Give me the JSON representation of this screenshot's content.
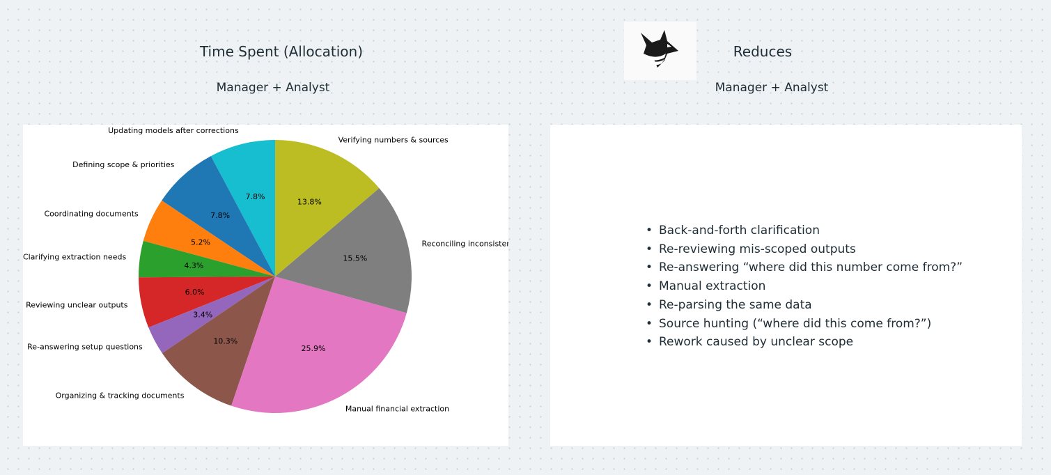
{
  "left_panel": {
    "title": "Time Spent (Allocation)",
    "subtitle": "Manager + Analyst"
  },
  "right_panel": {
    "logo_icon": "wolf-logo-icon",
    "title": "Reduces",
    "subtitle": "Manager + Analyst",
    "items": [
      "Back-and-forth clarification",
      "Re-reviewing mis-scoped outputs",
      "Re-answering “where did this number come from?”",
      "Manual extraction",
      "Re-parsing the same data",
      "Source hunting (“where did this come from?”)",
      "Rework caused by unclear scope"
    ]
  },
  "chart_data": {
    "type": "pie",
    "start_angle_deg": 90,
    "direction": "counterclockwise",
    "slices": [
      {
        "label": "Updating models after corrections",
        "value": 7.8,
        "pct_label": "7.8%",
        "color": "#17becf"
      },
      {
        "label": "Defining scope & priorities",
        "value": 7.8,
        "pct_label": "7.8%",
        "color": "#1f77b4"
      },
      {
        "label": "Coordinating documents",
        "value": 5.2,
        "pct_label": "5.2%",
        "color": "#ff7f0e"
      },
      {
        "label": "Clarifying extraction needs",
        "value": 4.3,
        "pct_label": "4.3%",
        "color": "#2ca02c"
      },
      {
        "label": "Reviewing unclear outputs",
        "value": 6.0,
        "pct_label": "6.0%",
        "color": "#d62728"
      },
      {
        "label": "Re-answering setup questions",
        "value": 3.4,
        "pct_label": "3.4%",
        "color": "#9467bd"
      },
      {
        "label": "Organizing & tracking documents",
        "value": 10.3,
        "pct_label": "10.3%",
        "color": "#8c564b"
      },
      {
        "label": "Manual financial extraction",
        "value": 25.9,
        "pct_label": "25.9%",
        "color": "#e377c2"
      },
      {
        "label": "Reconciling inconsistencies",
        "value": 15.5,
        "pct_label": "15.5%",
        "color": "#7f7f7f"
      },
      {
        "label": "Verifying numbers & sources",
        "value": 13.8,
        "pct_label": "13.8%",
        "color": "#bcbd22"
      }
    ]
  }
}
